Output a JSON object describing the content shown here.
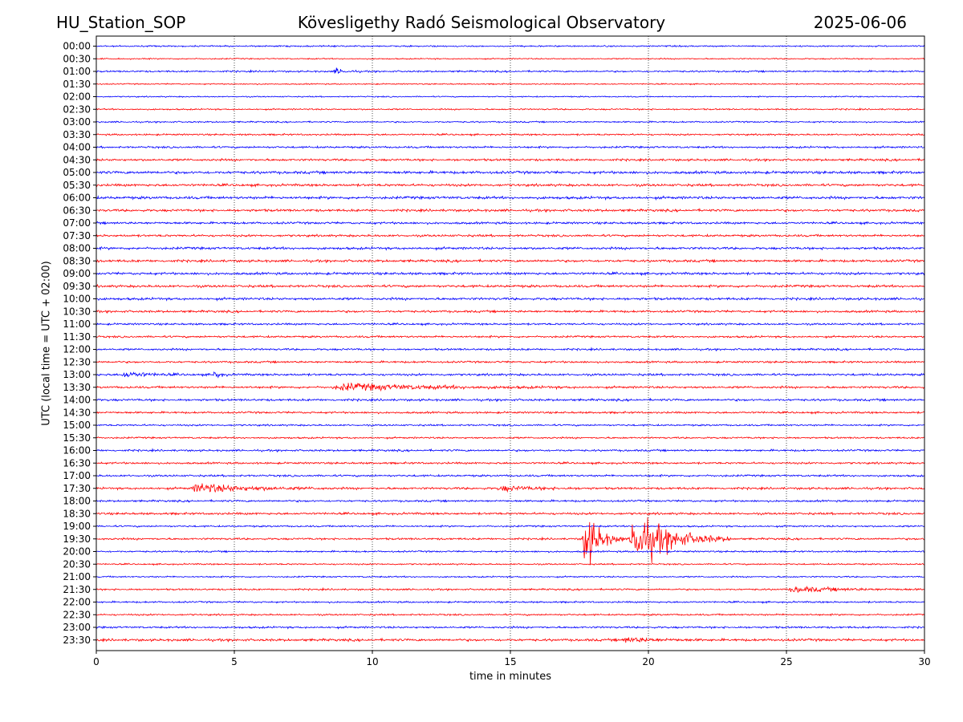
{
  "header": {
    "left": "HU_Station_SOP",
    "center": "Kövesligethy Radó Seismological Observatory",
    "right": "2025-06-06"
  },
  "chart_data": {
    "type": "line",
    "subtype": "helicorder",
    "title": "Kövesligethy Radó Seismological Observatory",
    "xlabel": "time in minutes",
    "ylabel": "UTC (local time = UTC + 02:00)",
    "xlim": [
      0,
      30
    ],
    "xticks": [
      0,
      5,
      10,
      15,
      20,
      25,
      30
    ],
    "grid": "vertical dotted at x ticks",
    "trace_colors": [
      "#0000ff",
      "#ff0000"
    ],
    "rows": [
      "00:00",
      "00:30",
      "01:00",
      "01:30",
      "02:00",
      "02:30",
      "03:00",
      "03:30",
      "04:00",
      "04:30",
      "05:00",
      "05:30",
      "06:00",
      "06:30",
      "07:00",
      "07:30",
      "08:00",
      "08:30",
      "09:00",
      "09:30",
      "10:00",
      "10:30",
      "11:00",
      "11:30",
      "12:00",
      "12:30",
      "13:00",
      "13:30",
      "14:00",
      "14:30",
      "15:00",
      "15:30",
      "16:00",
      "16:30",
      "17:00",
      "17:30",
      "18:00",
      "18:30",
      "19:00",
      "19:30",
      "20:00",
      "20:30",
      "21:00",
      "21:30",
      "22:00",
      "22:30",
      "23:00",
      "23:30"
    ],
    "noise_levels": [
      0.6,
      0.5,
      0.7,
      0.5,
      0.5,
      0.6,
      0.6,
      0.7,
      0.8,
      0.9,
      1.1,
      1.0,
      1.1,
      1.0,
      0.9,
      0.9,
      1.0,
      1.0,
      1.0,
      1.0,
      1.0,
      0.9,
      0.8,
      0.8,
      0.8,
      0.8,
      0.9,
      0.9,
      0.9,
      0.8,
      0.7,
      0.7,
      0.8,
      0.8,
      0.8,
      0.9,
      0.8,
      0.9,
      0.7,
      0.8,
      0.7,
      0.6,
      0.6,
      0.7,
      0.7,
      0.7,
      0.8,
      1.0
    ],
    "events": [
      {
        "row": "01:00",
        "start": 8.6,
        "end": 9.6,
        "amplitude": 2.5
      },
      {
        "row": "13:00",
        "start": 0.9,
        "end": 3.2,
        "amplitude": 2.5
      },
      {
        "row": "13:00",
        "start": 4.2,
        "end": 4.8,
        "amplitude": 4
      },
      {
        "row": "13:30",
        "start": 8.5,
        "end": 17.5,
        "amplitude": 2.8
      },
      {
        "row": "17:30",
        "start": 3.4,
        "end": 8.5,
        "amplitude": 4
      },
      {
        "row": "17:30",
        "start": 14.5,
        "end": 18,
        "amplitude": 2
      },
      {
        "row": "19:30",
        "start": 17.6,
        "end": 19.1,
        "amplitude": 28
      },
      {
        "row": "19:30",
        "start": 19.3,
        "end": 23,
        "amplitude": 24
      },
      {
        "row": "21:30",
        "start": 25,
        "end": 30,
        "amplitude": 2.2
      },
      {
        "row": "23:30",
        "start": 19,
        "end": 22,
        "amplitude": 2
      }
    ]
  }
}
